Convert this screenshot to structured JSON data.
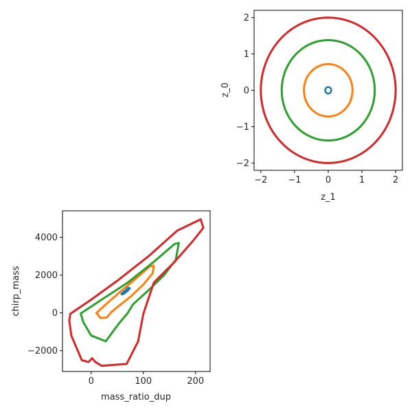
{
  "chart_data": [
    {
      "type": "scatter",
      "panel": "top-right",
      "xlabel": "z_1",
      "ylabel": "z_0",
      "xlim": [
        -2.2,
        2.2
      ],
      "ylim": [
        -2.2,
        2.2
      ],
      "xticks": [
        "−2",
        "−1",
        "0",
        "1",
        "2"
      ],
      "yticks": [
        "−2",
        "−1",
        "0",
        "1",
        "2"
      ],
      "grid": false,
      "series": [
        {
          "color": "#1f77b4",
          "shape": "ellipse",
          "cx": 0,
          "cy": 0,
          "rx": 0.09,
          "ry": 0.09
        },
        {
          "color": "#ff7f0e",
          "shape": "ellipse",
          "cx": 0,
          "cy": 0,
          "rx": 0.72,
          "ry": 0.72
        },
        {
          "color": "#2ca02c",
          "shape": "ellipse",
          "cx": 0,
          "cy": 0,
          "rx": 1.38,
          "ry": 1.38
        },
        {
          "color": "#d62728",
          "shape": "ellipse",
          "cx": 0,
          "cy": 0,
          "rx": 2.0,
          "ry": 2.0
        }
      ]
    },
    {
      "type": "scatter",
      "panel": "bottom-left",
      "xlabel": "mass_ratio_dup",
      "ylabel": "chirp_mass",
      "xlim": [
        -55,
        228
      ],
      "ylim": [
        -3100,
        5400
      ],
      "xticks": [
        "0",
        "100",
        "200"
      ],
      "yticks": [
        "−2000",
        "0",
        "2000",
        "4000"
      ],
      "grid": false,
      "series": [
        {
          "color": "#1f77b4",
          "shape": "curve",
          "points": [
            [
              58,
              1000
            ],
            [
              62,
              1100
            ],
            [
              67,
              1220
            ],
            [
              71,
              1330
            ],
            [
              74,
              1300
            ],
            [
              70,
              1180
            ],
            [
              65,
              1060
            ],
            [
              60,
              980
            ],
            [
              58,
              1000
            ]
          ]
        },
        {
          "color": "#ff7f0e",
          "shape": "curve",
          "points": [
            [
              10,
              -10
            ],
            [
              30,
              500
            ],
            [
              55,
              1100
            ],
            [
              85,
              1800
            ],
            [
              112,
              2450
            ],
            [
              120,
              2500
            ],
            [
              118,
              2100
            ],
            [
              100,
              1500
            ],
            [
              75,
              850
            ],
            [
              50,
              300
            ],
            [
              38,
              30
            ],
            [
              30,
              -250
            ],
            [
              18,
              -270
            ],
            [
              10,
              -10
            ]
          ]
        },
        {
          "color": "#2ca02c",
          "shape": "curve",
          "points": [
            [
              -20,
              -30
            ],
            [
              20,
              700
            ],
            [
              70,
              1600
            ],
            [
              120,
              2700
            ],
            [
              160,
              3650
            ],
            [
              168,
              3700
            ],
            [
              162,
              2800
            ],
            [
              140,
              2000
            ],
            [
              110,
              1200
            ],
            [
              80,
              450
            ],
            [
              70,
              -10
            ],
            [
              52,
              -600
            ],
            [
              28,
              -1500
            ],
            [
              0,
              -1200
            ],
            [
              -15,
              -500
            ],
            [
              -20,
              -30
            ]
          ]
        },
        {
          "color": "#d62728",
          "shape": "curve",
          "points": [
            [
              -40,
              -50
            ],
            [
              0,
              700
            ],
            [
              50,
              1700
            ],
            [
              110,
              3000
            ],
            [
              165,
              4350
            ],
            [
              210,
              4950
            ],
            [
              215,
              4500
            ],
            [
              195,
              3800
            ],
            [
              160,
              2700
            ],
            [
              120,
              1600
            ],
            [
              100,
              -50
            ],
            [
              90,
              -1500
            ],
            [
              68,
              -2700
            ],
            [
              20,
              -2800
            ],
            [
              8,
              -2600
            ],
            [
              2,
              -2400
            ],
            [
              -5,
              -2600
            ],
            [
              -18,
              -2500
            ],
            [
              -38,
              -1200
            ],
            [
              -42,
              -400
            ],
            [
              -40,
              -50
            ]
          ]
        }
      ]
    }
  ]
}
